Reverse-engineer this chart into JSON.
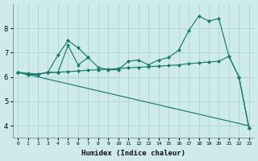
{
  "xlabel": "Humidex (Indice chaleur)",
  "background_color": "#ceeaea",
  "grid_color": "#aed4d4",
  "line_color": "#1a7a6e",
  "ylim": [
    3.5,
    9.0
  ],
  "yticks": [
    4,
    5,
    6,
    7,
    8
  ],
  "xlim": [
    -0.5,
    23.5
  ],
  "series1_x": [
    0,
    1,
    2,
    3,
    4,
    5,
    6,
    7,
    8,
    9,
    10,
    11,
    12,
    13,
    14,
    15,
    16,
    17,
    18,
    19,
    20,
    21,
    22,
    23
  ],
  "series1_y": [
    6.2,
    6.1,
    6.1,
    6.2,
    6.2,
    7.3,
    6.5,
    6.8,
    6.4,
    6.3,
    6.3,
    6.65,
    6.7,
    6.5,
    6.7,
    6.8,
    7.1,
    7.9,
    8.5,
    8.3,
    8.4,
    6.85,
    6.0,
    3.9
  ],
  "series2_x": [
    0,
    1,
    2,
    3,
    4,
    5,
    6,
    7
  ],
  "series2_y": [
    6.2,
    6.1,
    6.1,
    6.2,
    6.9,
    7.5,
    7.2,
    6.8
  ],
  "series3_x": [
    0,
    1,
    2,
    3,
    4,
    5,
    6,
    7,
    8,
    9,
    10,
    11,
    12,
    13,
    14,
    15,
    16,
    17,
    18,
    19,
    20,
    21,
    22,
    23
  ],
  "series3_y": [
    6.2,
    6.15,
    6.13,
    6.18,
    6.2,
    6.22,
    6.25,
    6.28,
    6.3,
    6.32,
    6.35,
    6.38,
    6.4,
    6.42,
    6.45,
    6.47,
    6.5,
    6.55,
    6.58,
    6.62,
    6.65,
    6.85,
    6.0,
    3.9
  ],
  "series4_x": [
    0,
    23
  ],
  "series4_y": [
    6.2,
    4.0
  ]
}
